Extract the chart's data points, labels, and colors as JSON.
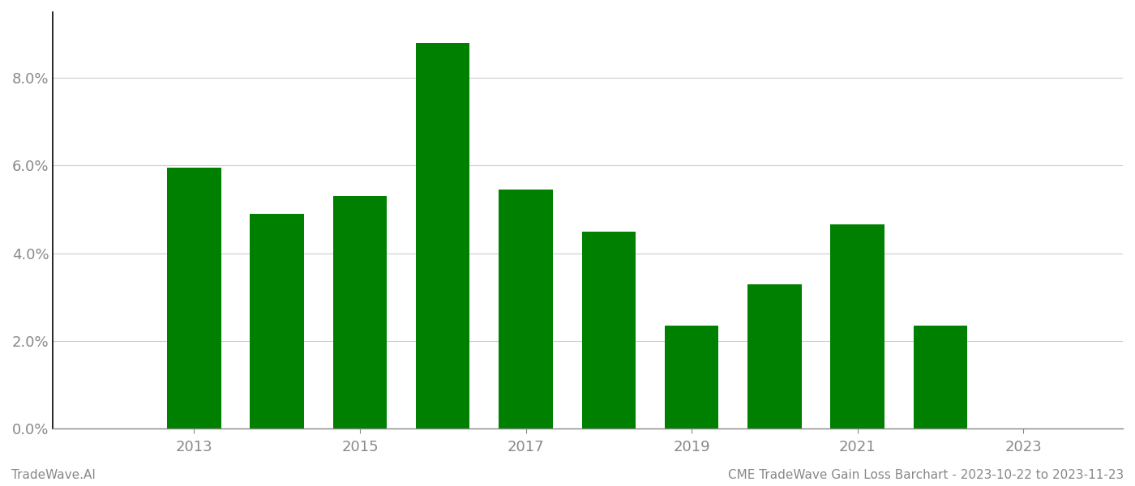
{
  "years": [
    2013,
    2014,
    2015,
    2016,
    2017,
    2018,
    2019,
    2020,
    2021,
    2022
  ],
  "values": [
    0.0595,
    0.049,
    0.053,
    0.088,
    0.0545,
    0.045,
    0.0235,
    0.033,
    0.0465,
    0.0235
  ],
  "bar_color": "#008000",
  "background_color": "#ffffff",
  "grid_color": "#cccccc",
  "axis_color": "#888888",
  "tick_color": "#888888",
  "ylim": [
    0,
    0.095
  ],
  "yticks": [
    0.0,
    0.02,
    0.04,
    0.06,
    0.08
  ],
  "ytick_labels": [
    "0.0%",
    "2.0%",
    "4.0%",
    "6.0%",
    "8.0%"
  ],
  "xtick_years": [
    2013,
    2015,
    2017,
    2019,
    2021,
    2023
  ],
  "footer_left": "TradeWave.AI",
  "footer_right": "CME TradeWave Gain Loss Barchart - 2023-10-22 to 2023-11-23",
  "figsize": [
    14.0,
    6.0
  ],
  "dpi": 100,
  "bar_width": 0.65,
  "xlim_left": 2011.3,
  "xlim_right": 2024.2
}
